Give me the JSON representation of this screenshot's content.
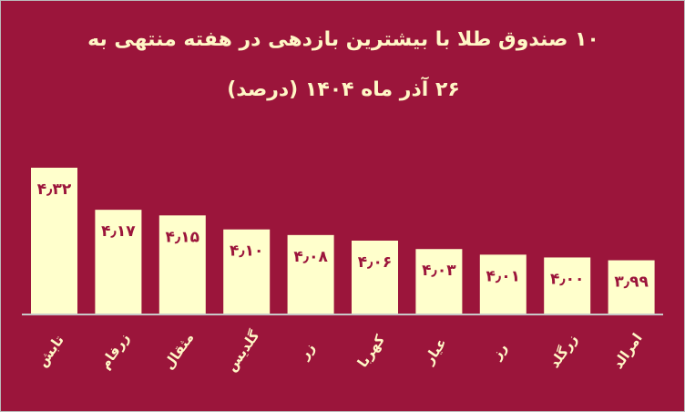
{
  "colors": {
    "background": "#9b153b",
    "bar": "#ffffcc",
    "text": "#fff7c6",
    "value_label": "#9b153b",
    "axis": "#c8c8c8"
  },
  "chart_data": {
    "type": "bar",
    "title_line1": "۱۰ صندوق طلا با بیشترین بازدهی در هفته منتهی به",
    "title_line2": "۲۶ آذر ماه ۱۴۰۴ (درصد)",
    "categories": [
      "تابش",
      "زرفام",
      "مثقال",
      "گلدیس",
      "زر",
      "کهربا",
      "عیار",
      "رز",
      "زرگلد",
      "امرالد"
    ],
    "values": [
      4.32,
      4.17,
      4.15,
      4.1,
      4.08,
      4.06,
      4.03,
      4.01,
      4.0,
      3.99
    ],
    "data_labels": [
      "۴٫۳۲",
      "۴٫۱۷",
      "۴٫۱۵",
      "۴٫۱۰",
      "۴٫۰۸",
      "۴٫۰۶",
      "۴٫۰۳",
      "۴٫۰۱",
      "۴٫۰۰",
      "۳٫۹۹"
    ],
    "ylim": [
      3.8,
      4.4
    ],
    "grid": false,
    "legend": "none",
    "xlabel": "",
    "ylabel": ""
  }
}
